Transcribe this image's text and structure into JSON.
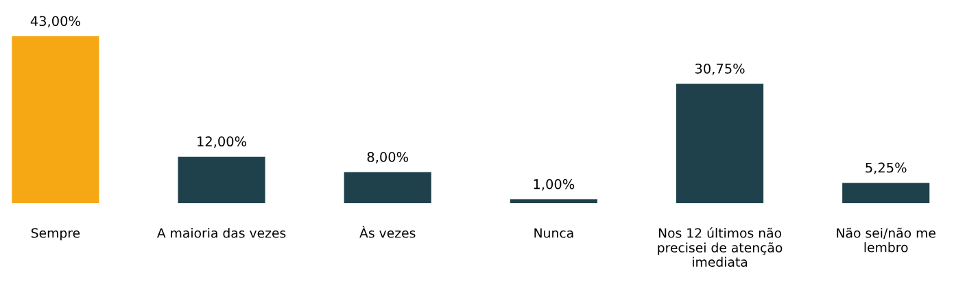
{
  "chart_data": {
    "type": "bar",
    "categories": [
      "Sempre",
      "A maioria das vezes",
      "Às vezes",
      "Nunca",
      "Nos 12 últimos não precisei de atenção imediata",
      "Não sei/não me lembro"
    ],
    "values": [
      43,
      12,
      8,
      1,
      30.75,
      5.25
    ],
    "colors": [
      "#f5a814",
      "#1f414b",
      "#1f414b",
      "#1f414b",
      "#1f414b",
      "#1f414b"
    ],
    "value_labels": [
      "43,00%",
      "12,00%",
      "8,00%",
      "1,00%",
      "30,75%",
      "5,25%"
    ],
    "grid": false,
    "legend": false
  }
}
